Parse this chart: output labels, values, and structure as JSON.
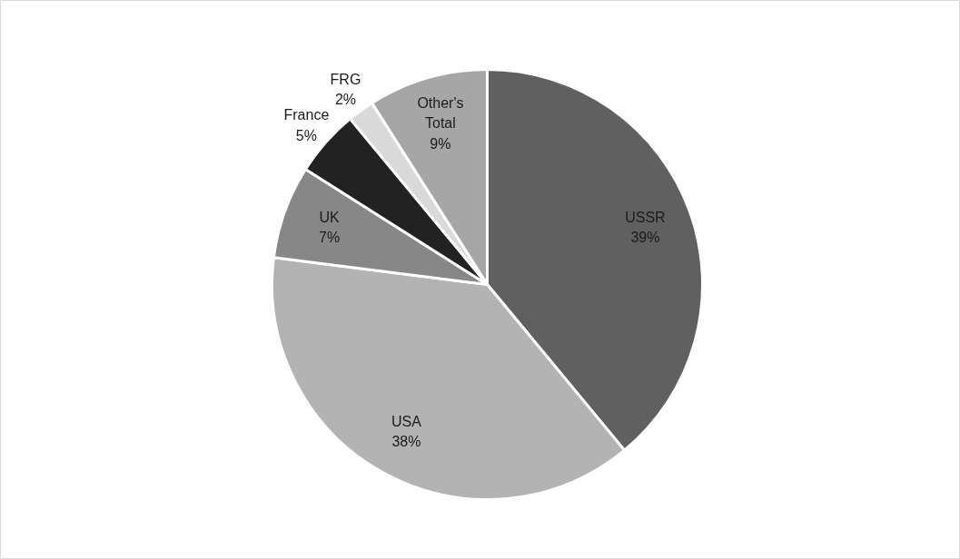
{
  "chart_data": {
    "type": "pie",
    "categories": [
      "USSR",
      "USA",
      "UK",
      "France",
      "FRG",
      "Other's Total"
    ],
    "values": [
      39,
      38,
      7,
      5,
      2,
      9
    ],
    "colors": [
      "#606060",
      "#b3b3b3",
      "#878787",
      "#222222",
      "#d9d9d9",
      "#a6a6a6"
    ],
    "value_labels": [
      "39%",
      "38%",
      "7%",
      "5%",
      "2%",
      "9%"
    ]
  }
}
